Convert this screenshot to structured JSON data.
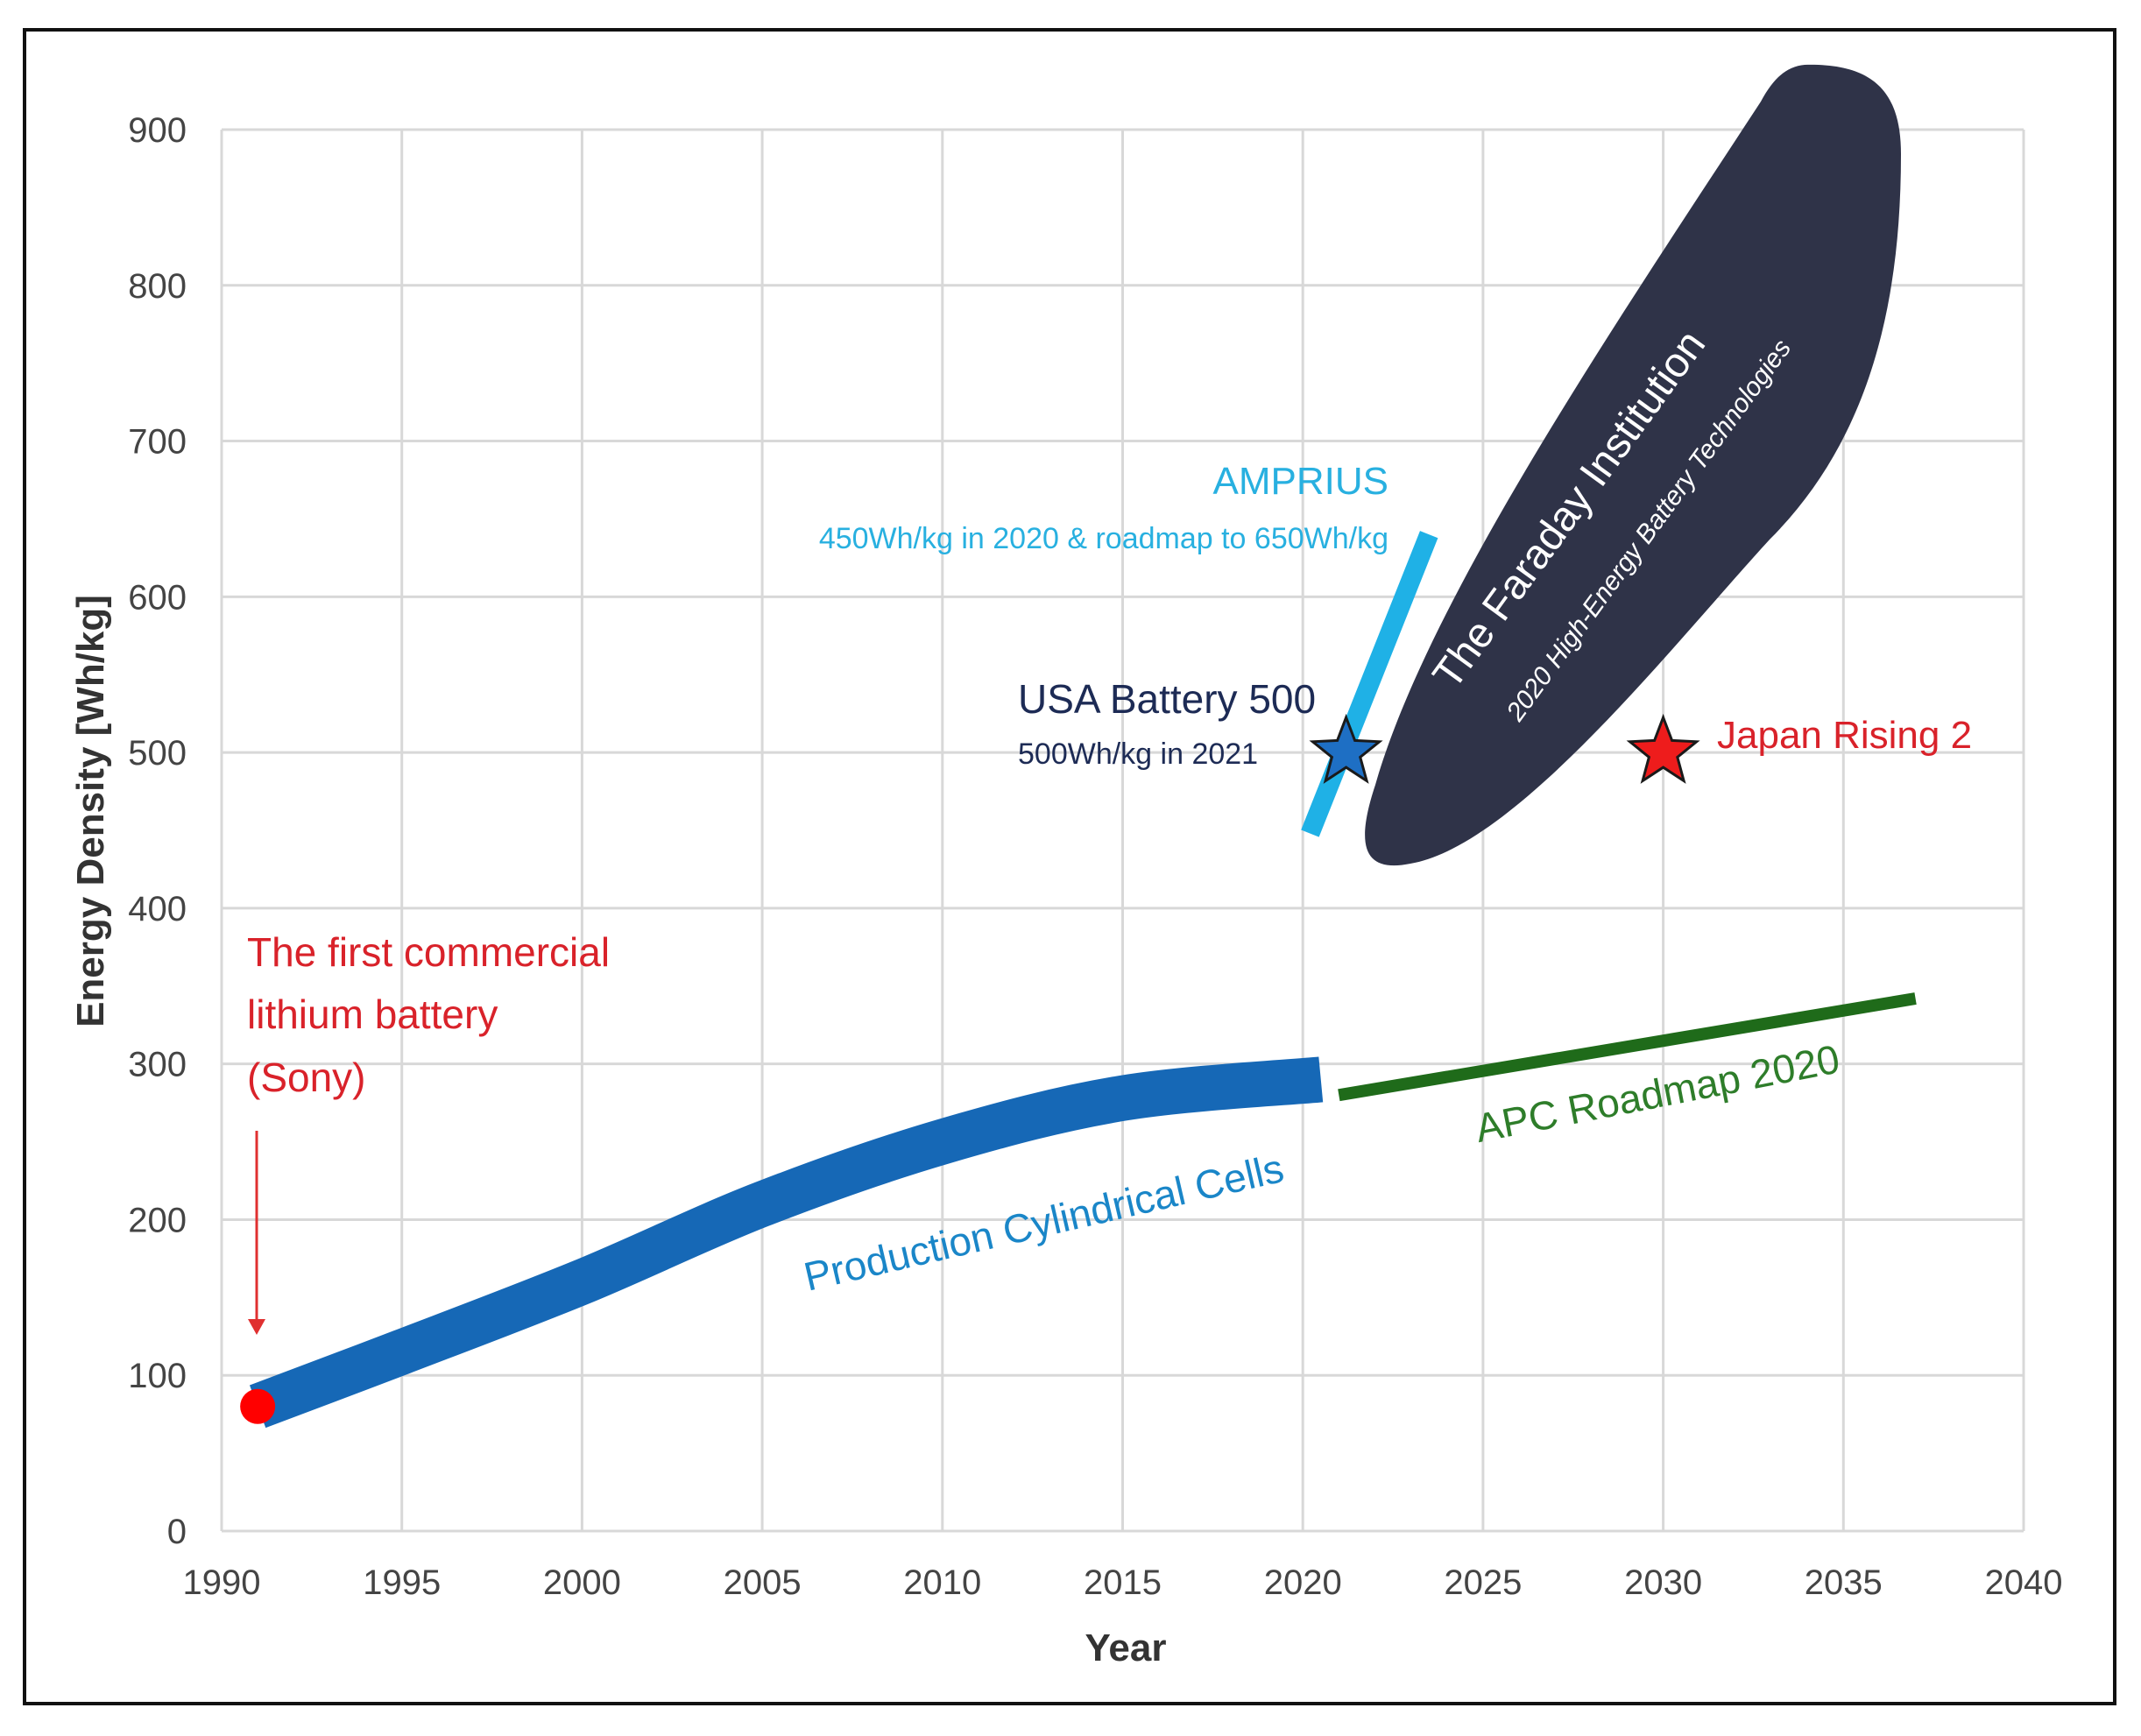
{
  "chart_data": {
    "type": "line",
    "title": "",
    "xlabel": "Year",
    "ylabel": "Energy Density [Wh/kg]",
    "xlim": [
      1990,
      2040
    ],
    "ylim": [
      0,
      900
    ],
    "xticks": [
      1990,
      1995,
      2000,
      2005,
      2010,
      2015,
      2020,
      2025,
      2030,
      2035,
      2040
    ],
    "yticks": [
      0,
      100,
      200,
      300,
      400,
      500,
      600,
      700,
      800,
      900
    ],
    "grid": true,
    "series": [
      {
        "name": "Production Cylindrical Cells",
        "color": "#1668b6",
        "x": [
          1991,
          1995,
          2000,
          2005,
          2010,
          2015,
          2020.5
        ],
        "y": [
          80,
          115,
          160,
          210,
          250,
          278,
          290
        ]
      },
      {
        "name": "APC Roadmap 2020",
        "color": "#1f6b1a",
        "x": [
          2021,
          2037
        ],
        "y": [
          280,
          342
        ]
      },
      {
        "name": "AMPRIUS",
        "color": "#1fb1e6",
        "x": [
          2020.2,
          2023.5
        ],
        "y": [
          448,
          640
        ]
      }
    ],
    "points": [
      {
        "name": "The first commercial lithium battery (Sony)",
        "x": 1991,
        "y": 80,
        "color": "#ff0000"
      },
      {
        "name": "USA Battery 500",
        "x": 2021.2,
        "y": 500,
        "color": "#1e6fc4"
      },
      {
        "name": "Japan Rising 2",
        "x": 2030,
        "y": 500,
        "color": "#ee1c1c"
      }
    ],
    "regions": [
      {
        "name": "The Faraday Institution",
        "color": "#2f3348"
      }
    ],
    "annotations": {
      "sony": [
        "The first commercial",
        "lithium battery",
        "(Sony)"
      ],
      "cells": "Production Cylindrical Cells",
      "apc": "APC Roadmap 2020",
      "amprius_title": "AMPRIUS",
      "amprius_sub": "450Wh/kg in 2020 & roadmap to 650Wh/kg",
      "usa_title": "USA Battery 500",
      "usa_sub": "500Wh/kg in 2021",
      "japan": "Japan Rising 2",
      "faraday_title": "The Faraday Institution",
      "faraday_sub": "2020 High-Energy Battery Technologies"
    },
    "colors": {
      "sony": "#d9222a",
      "cells_label": "#1a86c8",
      "apc_label": "#2e7d2a",
      "amprius_label": "#28b0e0",
      "usa_label": "#1d2b55",
      "japan_label": "#d9222a"
    }
  }
}
